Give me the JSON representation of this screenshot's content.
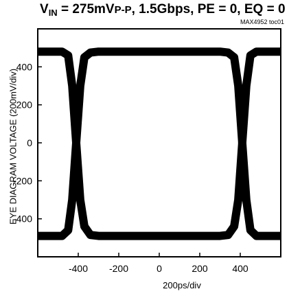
{
  "title": {
    "main": "V",
    "sub": "IN",
    "rest": " = 275mV",
    "pp": "P-P",
    "tail": ", 1.5Gbps, PE = 0, EQ = 0"
  },
  "figure_id": "MAX4952 toc01",
  "chart_data": {
    "type": "line",
    "title": "VIN = 275mVP-P, 1.5Gbps, PE = 0, EQ = 0",
    "xlabel": "200ps/div",
    "ylabel": "EYE DIAGRAM VOLTAGE (200mV/div)",
    "xlim": [
      -600,
      600
    ],
    "ylim": [
      -600,
      600
    ],
    "x_ticks": [
      -400,
      -200,
      0,
      200,
      400
    ],
    "y_ticks": [
      400,
      200,
      0,
      -200,
      -400
    ],
    "grid": false,
    "levels": {
      "high": 480,
      "low": -490
    },
    "crossings": [
      -410,
      410
    ],
    "series": [
      {
        "x": [
          -600,
          -480,
          -450,
          -430,
          -410,
          -390,
          -370,
          -340,
          -300,
          -200,
          -100,
          0,
          100,
          200,
          300,
          340,
          370,
          390,
          410,
          430,
          450,
          480,
          600
        ],
        "y": [
          480,
          480,
          460,
          300,
          0,
          -300,
          -440,
          -485,
          -490,
          -490,
          -490,
          -490,
          -490,
          -490,
          -490,
          -485,
          -440,
          -300,
          0,
          300,
          460,
          480,
          480
        ]
      },
      {
        "x": [
          -600,
          -480,
          -450,
          -430,
          -410,
          -390,
          -370,
          -340,
          -300,
          -200,
          -100,
          0,
          100,
          200,
          300,
          340,
          370,
          390,
          410,
          430,
          450,
          480,
          600
        ],
        "y": [
          -490,
          -490,
          -460,
          -300,
          0,
          300,
          450,
          475,
          480,
          480,
          480,
          480,
          480,
          480,
          480,
          475,
          450,
          300,
          0,
          -300,
          -460,
          -490,
          -490
        ]
      }
    ]
  }
}
